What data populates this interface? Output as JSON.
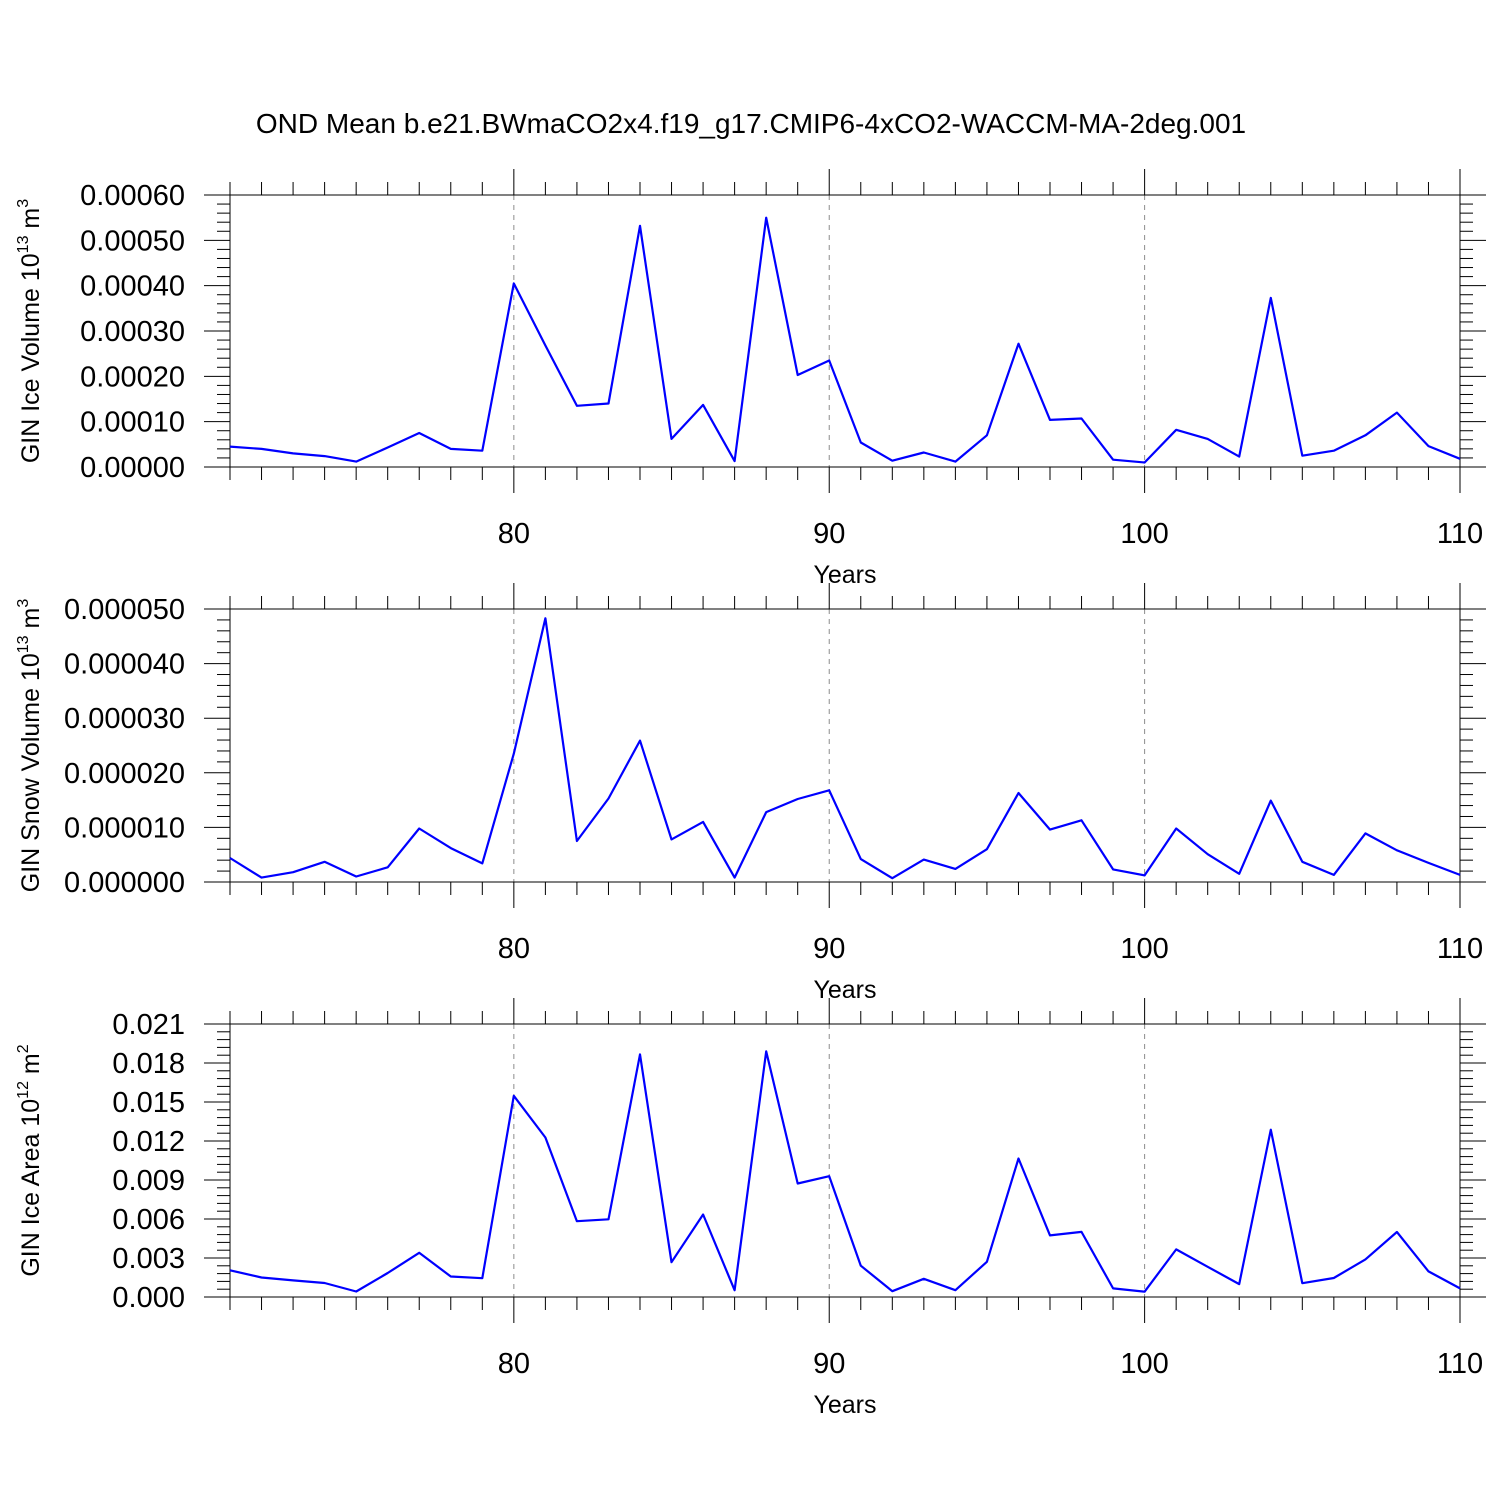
{
  "title": "OND Mean b.e21.BWmaCO2x4.f19_g17.CMIP6-4xCO2-WACCM-MA-2deg.001",
  "chart_data": [
    {
      "type": "line",
      "ylabel": "GIN Ice Volume 10",
      "ylabel_exp": "13",
      "ylabel_unit": " m",
      "ylabel_unit_exp": "3",
      "xlabel": "Years",
      "xlim": [
        71,
        110
      ],
      "ylim": [
        0,
        0.0006
      ],
      "x_ticks": [
        80,
        90,
        100,
        110
      ],
      "x_tick_labels": [
        "80",
        "90",
        "100",
        "110"
      ],
      "y_ticks": [
        0,
        0.0001,
        0.0002,
        0.0003,
        0.0004,
        0.0005,
        0.0006
      ],
      "y_tick_labels": [
        "0.00000",
        "0.00010",
        "0.00020",
        "0.00030",
        "0.00040",
        "0.00050",
        "0.00060"
      ],
      "grid": "vertical dashed at major x ticks",
      "series": [
        {
          "color": "#0000ff",
          "x": [
            71,
            72,
            73,
            74,
            75,
            76,
            77,
            78,
            79,
            80,
            81,
            82,
            83,
            84,
            85,
            86,
            87,
            88,
            89,
            90,
            91,
            92,
            93,
            94,
            95,
            96,
            97,
            98,
            99,
            100,
            101,
            102,
            103,
            104,
            105,
            106,
            107,
            108,
            109,
            110
          ],
          "values": [
            4.5e-05,
            4e-05,
            3e-05,
            2.4e-05,
            1.2e-05,
            4.3e-05,
            7.5e-05,
            4e-05,
            3.6e-05,
            0.000405,
            0.000268,
            0.000135,
            0.00014,
            0.000532,
            6.2e-05,
            0.000137,
            1.3e-05,
            0.00055,
            0.000203,
            0.000235,
            5.4e-05,
            1.4e-05,
            3.2e-05,
            1.2e-05,
            7e-05,
            0.000272,
            0.000104,
            0.000107,
            1.6e-05,
            1e-05,
            8.2e-05,
            6.2e-05,
            2.3e-05,
            0.000373,
            2.5e-05,
            3.6e-05,
            7e-05,
            0.00012,
            4.6e-05,
            1.8e-05
          ]
        }
      ]
    },
    {
      "type": "line",
      "ylabel": "GIN Snow Volume 10",
      "ylabel_exp": "13",
      "ylabel_unit": " m",
      "ylabel_unit_exp": "3",
      "xlabel": "Years",
      "xlim": [
        71,
        110
      ],
      "ylim": [
        0,
        5e-05
      ],
      "x_ticks": [
        80,
        90,
        100,
        110
      ],
      "x_tick_labels": [
        "80",
        "90",
        "100",
        "110"
      ],
      "y_ticks": [
        0,
        1e-05,
        2e-05,
        3e-05,
        4e-05,
        5e-05
      ],
      "y_tick_labels": [
        "0.000000",
        "0.000010",
        "0.000020",
        "0.000030",
        "0.000040",
        "0.000050"
      ],
      "grid": "vertical dashed at major x ticks",
      "series": [
        {
          "color": "#0000ff",
          "x": [
            71,
            72,
            73,
            74,
            75,
            76,
            77,
            78,
            79,
            80,
            81,
            82,
            83,
            84,
            85,
            86,
            87,
            88,
            89,
            90,
            91,
            92,
            93,
            94,
            95,
            96,
            97,
            98,
            99,
            100,
            101,
            102,
            103,
            104,
            105,
            106,
            107,
            108,
            109,
            110
          ],
          "values": [
            4.4e-06,
            8e-07,
            1.8e-06,
            3.7e-06,
            1e-06,
            2.7e-06,
            9.8e-06,
            6.2e-06,
            3.4e-06,
            2.35e-05,
            4.83e-05,
            7.5e-06,
            1.53e-05,
            2.59e-05,
            7.8e-06,
            1.1e-05,
            8e-07,
            1.28e-05,
            1.52e-05,
            1.68e-05,
            4.2e-06,
            7e-07,
            4.1e-06,
            2.4e-06,
            6e-06,
            1.63e-05,
            9.6e-06,
            1.13e-05,
            2.3e-06,
            1.2e-06,
            9.8e-06,
            5.1e-06,
            1.5e-06,
            1.49e-05,
            3.7e-06,
            1.3e-06,
            8.9e-06,
            5.8e-06,
            3.5e-06,
            1.3e-06
          ]
        }
      ]
    },
    {
      "type": "line",
      "ylabel": "GIN Ice Area 10",
      "ylabel_exp": "12",
      "ylabel_unit": " m",
      "ylabel_unit_exp": "2",
      "xlabel": "Years",
      "xlim": [
        71,
        110
      ],
      "ylim": [
        0,
        0.021
      ],
      "x_ticks": [
        80,
        90,
        100,
        110
      ],
      "x_tick_labels": [
        "80",
        "90",
        "100",
        "110"
      ],
      "y_ticks": [
        0,
        0.003,
        0.006,
        0.009,
        0.012,
        0.015,
        0.018,
        0.021
      ],
      "y_tick_labels": [
        "0.000",
        "0.003",
        "0.006",
        "0.009",
        "0.012",
        "0.015",
        "0.018",
        "0.021"
      ],
      "grid": "vertical dashed at major x ticks",
      "series": [
        {
          "color": "#0000ff",
          "x": [
            71,
            72,
            73,
            74,
            75,
            76,
            77,
            78,
            79,
            80,
            81,
            82,
            83,
            84,
            85,
            86,
            87,
            88,
            89,
            90,
            91,
            92,
            93,
            94,
            95,
            96,
            97,
            98,
            99,
            100,
            101,
            102,
            103,
            104,
            105,
            106,
            107,
            108,
            109,
            110
          ],
          "values": [
            0.00205,
            0.0015,
            0.00128,
            0.00108,
            0.00042,
            0.00185,
            0.0034,
            0.00158,
            0.00145,
            0.01548,
            0.01227,
            0.00583,
            0.00598,
            0.01866,
            0.00268,
            0.00635,
            0.00052,
            0.01889,
            0.00873,
            0.00929,
            0.00241,
            0.00045,
            0.0014,
            0.00052,
            0.00271,
            0.01065,
            0.00474,
            0.00501,
            0.00066,
            0.00041,
            0.00366,
            0.00232,
            0.00099,
            0.01287,
            0.00106,
            0.00146,
            0.00289,
            0.005,
            0.00197,
            0.00066
          ]
        }
      ]
    }
  ]
}
